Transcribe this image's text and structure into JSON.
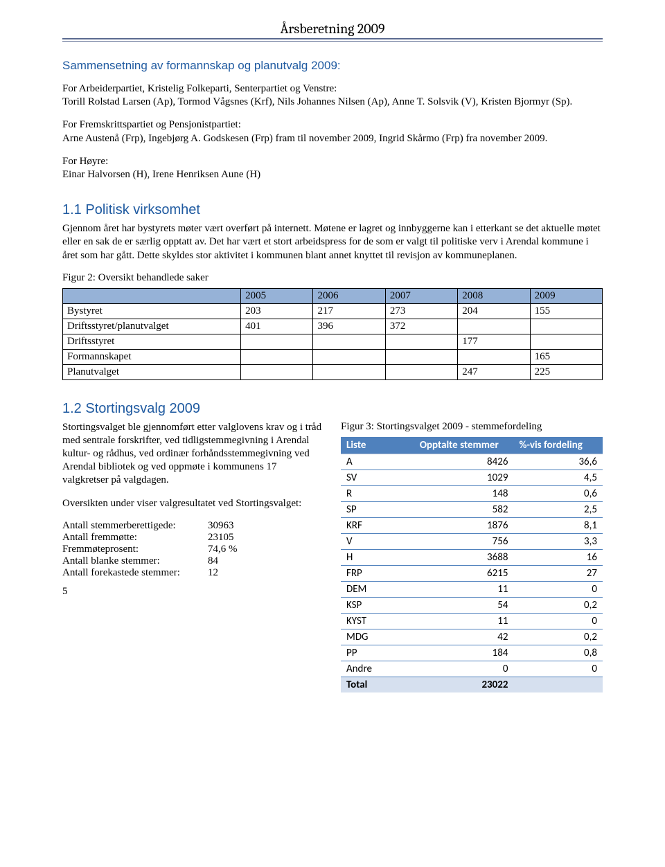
{
  "header": {
    "title": "Årsberetning 2009"
  },
  "section_composition": {
    "heading": "Sammensetning av formannskap og planutvalg 2009:",
    "para1_intro": "For Arbeiderpartiet, Kristelig Folkeparti, Senterpartiet og Venstre:",
    "para1_body": "Torill Rolstad Larsen (Ap), Tormod Vågsnes (Krf), Nils Johannes Nilsen (Ap), Anne T. Solsvik (V), Kristen Bjormyr (Sp).",
    "para2_intro": "For Fremskrittspartiet og Pensjonistpartiet:",
    "para2_body": "Arne Austenå (Frp), Ingebjørg A. Godskesen (Frp) fram til november 2009, Ingrid Skårmo (Frp) fra november 2009.",
    "para3_intro": "For Høyre:",
    "para3_body": "Einar Halvorsen (H), Irene Henriksen Aune (H)"
  },
  "section_1_1": {
    "heading": "1.1   Politisk virksomhet",
    "body": "Gjennom året har bystyrets møter vært overført på internett. Møtene er lagret og innbyggerne kan i etterkant se det aktuelle møtet eller en sak de er særlig opptatt av. Det har vært et stort arbeidspress for de som er valgt til politiske verv i Arendal kommune i året som har gått. Dette skyldes stor aktivitet i kommunen blant annet knyttet til revisjon av kommuneplanen.",
    "fig_caption": "Figur 2: Oversikt behandlede saker",
    "table": {
      "header_bg": "#96b2d7",
      "columns": [
        "",
        "2005",
        "2006",
        "2007",
        "2008",
        "2009"
      ],
      "rows": [
        [
          "Bystyret",
          "203",
          "217",
          "273",
          "204",
          "155"
        ],
        [
          "Driftsstyret/planutvalget",
          "401",
          "396",
          "372",
          "",
          ""
        ],
        [
          "Driftsstyret",
          "",
          "",
          "",
          "177",
          ""
        ],
        [
          "Formannskapet",
          "",
          "",
          "",
          "",
          "165"
        ],
        [
          "Planutvalget",
          "",
          "",
          "",
          "247",
          "225"
        ]
      ]
    }
  },
  "section_1_2": {
    "heading": "1.2   Stortingsvalg 2009",
    "body1": "Stortingsvalget ble gjennomført etter valglovens krav og i tråd med sentrale forskrifter, ved tidligstemmegivning i Arendal kultur- og rådhus, ved ordinær forhåndsstemmegivning ved Arendal bibliotek og ved oppmøte i kommunens 17 valgkretser på valgdagen.",
    "body2": "Oversikten under viser valgresultatet ved Stortingsvalget:",
    "stats": [
      {
        "label": "Antall stemmerberettigede:",
        "value": "30963"
      },
      {
        "label": "Antall fremmøtte:",
        "value": "23105"
      },
      {
        "label": "Fremmøteprosent:",
        "value": "74,6 %"
      },
      {
        "label": "Antall blanke stemmer:",
        "value": "84"
      },
      {
        "label": "Antall forekastede stemmer:",
        "value": "12"
      }
    ],
    "fig3_caption": "Figur 3: Stortingsvalget 2009 - stemmefordeling",
    "vote_table": {
      "header_bg": "#4f81bd",
      "header_fg": "#ffffff",
      "row_border": "#4f81bd",
      "total_bg": "#d6e0ef",
      "columns": [
        "Liste",
        "Opptalte stemmer",
        "%-vis fordeling"
      ],
      "rows": [
        [
          "A",
          "8426",
          "36,6"
        ],
        [
          "SV",
          "1029",
          "4,5"
        ],
        [
          "R",
          "148",
          "0,6"
        ],
        [
          "SP",
          "582",
          "2,5"
        ],
        [
          "KRF",
          "1876",
          "8,1"
        ],
        [
          "V",
          "756",
          "3,3"
        ],
        [
          "H",
          "3688",
          "16"
        ],
        [
          "FRP",
          "6215",
          "27"
        ],
        [
          "DEM",
          "11",
          "0"
        ],
        [
          "KSP",
          "54",
          "0,2"
        ],
        [
          "KYST",
          "11",
          "0"
        ],
        [
          "MDG",
          "42",
          "0,2"
        ],
        [
          "PP",
          "184",
          "0,8"
        ],
        [
          "Andre",
          "0",
          "0"
        ]
      ],
      "total": [
        "Total",
        "23022",
        ""
      ]
    }
  },
  "page_number": "5"
}
